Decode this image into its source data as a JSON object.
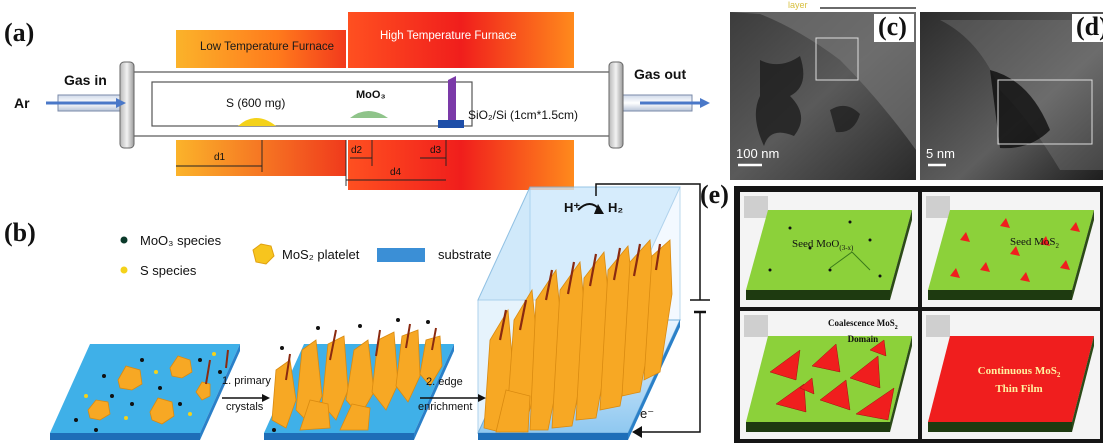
{
  "panel_a": {
    "label": "(a)",
    "low_furnace": "Low Temperature Furnace",
    "high_furnace": "High Temperature Furnace",
    "gas_in": "Gas in",
    "gas_out": "Gas out",
    "carrier": "Ar",
    "sulfur": "S (600 mg)",
    "moo3": "MoO₃",
    "substrate": "SiO₂/Si (1cm*1.5cm)",
    "dims": [
      "d1",
      "d2",
      "d3",
      "d4"
    ]
  },
  "panel_b": {
    "label": "(b)",
    "legend_moo3": "MoO₃ species",
    "legend_s": "S species",
    "legend_platelet": "MoS₂ platelet",
    "legend_substrate": "substrate",
    "step1": "1. primary",
    "step1b": "crystals",
    "step2": "2. edge",
    "step2b": "enrichment",
    "h_plus": "H⁺",
    "h2": "H₂",
    "electron": "e⁻"
  },
  "panel_c": {
    "label": "(c)",
    "scale": "100 nm",
    "top_text": "layer"
  },
  "panel_d": {
    "label": "(d)",
    "scale": "5 nm"
  },
  "panel_e": {
    "label": "(e)",
    "seed_moo": "Seed MoO",
    "seed_moo_sub": "(3-x)",
    "seed_mos": "Seed MoS",
    "seed_mos_sub": "2",
    "coalescence": "Coalescence MoS",
    "coalescence_sub": "2",
    "domain": "Domain",
    "continuous": "Continuous MoS",
    "continuous_sub": "2",
    "thin_film": "Thin Film"
  },
  "colors": {
    "furnace_orange": "#ff6a1a",
    "furnace_red": "#e8141c",
    "sulfur_yellow": "#f4d21a",
    "moo3_green": "#8fc48a",
    "substrate_blue": "#3b8fd6",
    "platelet_orange": "#f7a824",
    "film_green": "#8cd13a",
    "mos2_red": "#f01e1e"
  }
}
